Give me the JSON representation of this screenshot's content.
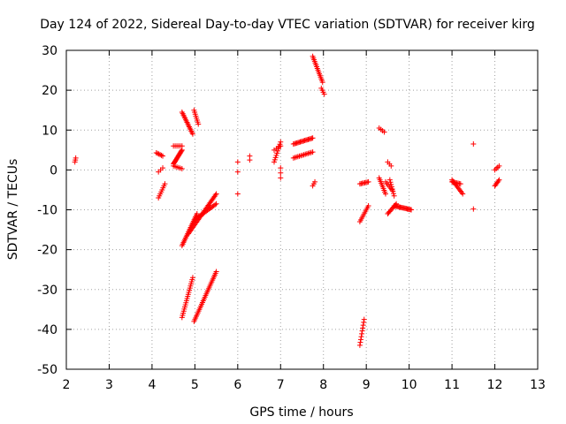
{
  "chart_data": {
    "type": "scatter",
    "title": "Day 124 of 2022, Sidereal Day-to-day VTEC variation (SDTVAR) for receiver kirg",
    "xlabel": "GPS time / hours",
    "ylabel": "SDTVAR / TECUs",
    "xlim": [
      2,
      13
    ],
    "ylim": [
      -50,
      30
    ],
    "xticks": [
      "2",
      "3",
      "4",
      "5",
      "6",
      "7",
      "8",
      "9",
      "10",
      "11",
      "12",
      "13"
    ],
    "yticks": [
      "30",
      "20",
      "10",
      "0",
      "-10",
      "-20",
      "-30",
      "-40",
      "-50"
    ],
    "grid": true,
    "marker": "+",
    "color": "#ff0000",
    "segments": [
      {
        "x0": 2.2,
        "y0": 2.0,
        "x1": 2.22,
        "y1": 3.0,
        "n": 3
      },
      {
        "x0": 4.1,
        "y0": 4.3,
        "x1": 4.25,
        "y1": 3.5,
        "n": 6
      },
      {
        "x0": 4.15,
        "y0": -0.5,
        "x1": 4.25,
        "y1": 0.5,
        "n": 3
      },
      {
        "x0": 4.15,
        "y0": -7.0,
        "x1": 4.3,
        "y1": -3.5,
        "n": 8
      },
      {
        "x0": 4.5,
        "y0": 6.0,
        "x1": 4.7,
        "y1": 6.0,
        "n": 6
      },
      {
        "x0": 4.5,
        "y0": 1.5,
        "x1": 4.7,
        "y1": 5.0,
        "n": 16
      },
      {
        "x0": 4.5,
        "y0": 1.0,
        "x1": 4.7,
        "y1": 0.3,
        "n": 6
      },
      {
        "x0": 4.7,
        "y0": 14.5,
        "x1": 4.95,
        "y1": 9.0,
        "n": 16
      },
      {
        "x0": 4.98,
        "y0": 15.0,
        "x1": 5.08,
        "y1": 11.5,
        "n": 8
      },
      {
        "x0": 4.7,
        "y0": -19.0,
        "x1": 5.05,
        "y1": -11.0,
        "n": 22
      },
      {
        "x0": 4.85,
        "y0": -16.0,
        "x1": 5.5,
        "y1": -6.0,
        "n": 32
      },
      {
        "x0": 5.0,
        "y0": -12.5,
        "x1": 5.5,
        "y1": -8.5,
        "n": 18
      },
      {
        "x0": 4.7,
        "y0": -37.0,
        "x1": 4.95,
        "y1": -27.0,
        "n": 20
      },
      {
        "x0": 4.98,
        "y0": -38.0,
        "x1": 5.5,
        "y1": -25.5,
        "n": 30
      },
      {
        "x0": 6.0,
        "y0": 2.0,
        "x1": 6.0,
        "y1": 2.0,
        "n": 1
      },
      {
        "x0": 6.0,
        "y0": -6.0,
        "x1": 6.0,
        "y1": -6.0,
        "n": 1
      },
      {
        "x0": 6.0,
        "y0": -0.5,
        "x1": 6.0,
        "y1": -0.5,
        "n": 1
      },
      {
        "x0": 6.28,
        "y0": 3.5,
        "x1": 6.28,
        "y1": 2.5,
        "n": 2
      },
      {
        "x0": 6.85,
        "y0": 2.0,
        "x1": 7.0,
        "y1": 7.0,
        "n": 10
      },
      {
        "x0": 6.85,
        "y0": 5.0,
        "x1": 7.0,
        "y1": 6.0,
        "n": 4
      },
      {
        "x0": 7.0,
        "y0": 0.5,
        "x1": 7.0,
        "y1": -2.0,
        "n": 3
      },
      {
        "x0": 7.3,
        "y0": 6.5,
        "x1": 7.75,
        "y1": 8.0,
        "n": 18
      },
      {
        "x0": 7.3,
        "y0": 3.0,
        "x1": 7.75,
        "y1": 4.5,
        "n": 14
      },
      {
        "x0": 7.75,
        "y0": -4.0,
        "x1": 7.8,
        "y1": -3.0,
        "n": 3
      },
      {
        "x0": 7.75,
        "y0": 28.5,
        "x1": 7.98,
        "y1": 22.0,
        "n": 16
      },
      {
        "x0": 7.95,
        "y0": 20.5,
        "x1": 8.02,
        "y1": 19.0,
        "n": 4
      },
      {
        "x0": 8.85,
        "y0": -3.5,
        "x1": 9.05,
        "y1": -3.0,
        "n": 8
      },
      {
        "x0": 8.85,
        "y0": -13.0,
        "x1": 9.05,
        "y1": -9.0,
        "n": 10
      },
      {
        "x0": 8.85,
        "y0": -44.0,
        "x1": 8.95,
        "y1": -37.5,
        "n": 10
      },
      {
        "x0": 9.3,
        "y0": 10.5,
        "x1": 9.42,
        "y1": 9.5,
        "n": 4
      },
      {
        "x0": 9.3,
        "y0": -2.0,
        "x1": 9.45,
        "y1": -6.0,
        "n": 10
      },
      {
        "x0": 9.45,
        "y0": -3.0,
        "x1": 9.6,
        "y1": -5.0,
        "n": 6
      },
      {
        "x0": 9.5,
        "y0": 2.0,
        "x1": 9.58,
        "y1": 1.0,
        "n": 3
      },
      {
        "x0": 9.5,
        "y0": -11.0,
        "x1": 9.7,
        "y1": -8.5,
        "n": 10
      },
      {
        "x0": 9.55,
        "y0": -2.5,
        "x1": 9.65,
        "y1": -6.5,
        "n": 8
      },
      {
        "x0": 9.65,
        "y0": -9.0,
        "x1": 10.05,
        "y1": -10.0,
        "n": 18
      },
      {
        "x0": 11.0,
        "y0": -2.5,
        "x1": 11.25,
        "y1": -6.0,
        "n": 12
      },
      {
        "x0": 11.0,
        "y0": -3.0,
        "x1": 11.2,
        "y1": -3.5,
        "n": 8
      },
      {
        "x0": 11.5,
        "y0": 6.5,
        "x1": 11.5,
        "y1": 6.5,
        "n": 1
      },
      {
        "x0": 11.5,
        "y0": -9.8,
        "x1": 11.5,
        "y1": -9.8,
        "n": 1
      },
      {
        "x0": 12.0,
        "y0": 0.0,
        "x1": 12.1,
        "y1": 1.0,
        "n": 4
      },
      {
        "x0": 12.0,
        "y0": -4.0,
        "x1": 12.1,
        "y1": -2.5,
        "n": 6
      }
    ]
  }
}
